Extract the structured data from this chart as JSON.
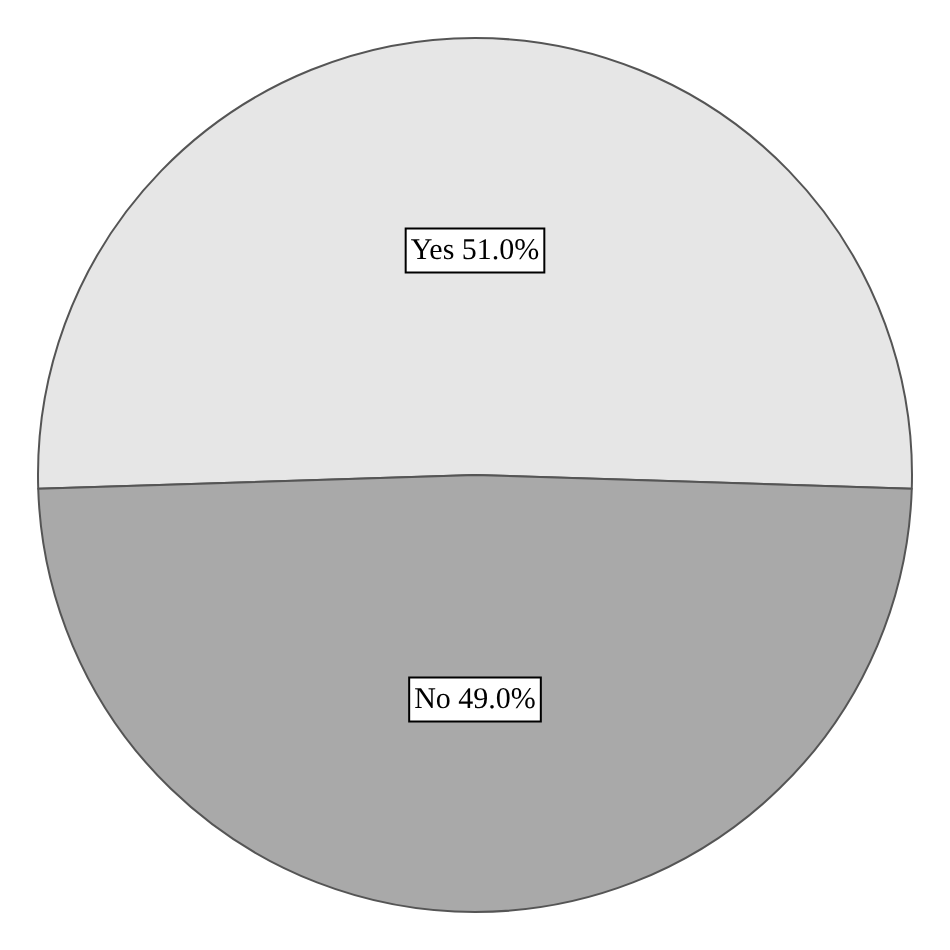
{
  "chart_data": {
    "type": "pie",
    "categories": [
      "Yes",
      "No"
    ],
    "values": [
      51.0,
      49.0
    ],
    "colors": [
      "#e6e6e6",
      "#a9a9a9"
    ],
    "value_labels": [
      "51.0%",
      "49.0%"
    ],
    "legend": false
  }
}
